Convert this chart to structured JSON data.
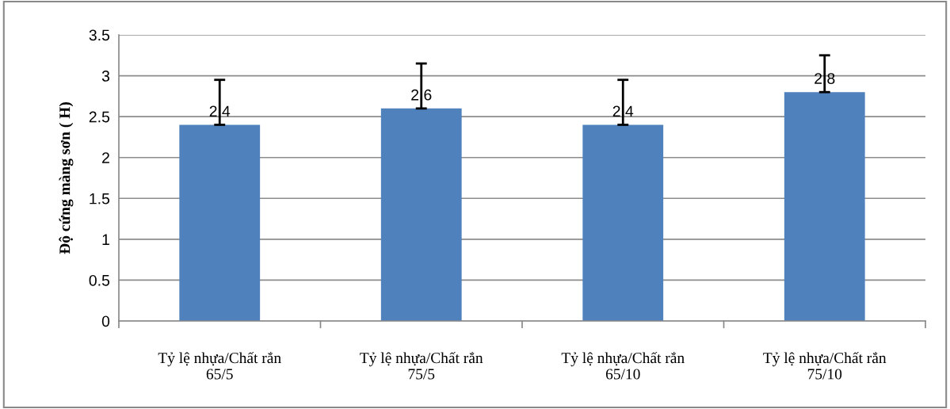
{
  "chart_data": {
    "type": "bar",
    "ylabel": "Độ cứng màng sơn ( H)",
    "categories": [
      "Tỷ lệ nhựa/Chất rắn\n65/5",
      "Tỷ lệ nhựa/Chất rắn\n75/5",
      "Tỷ lệ nhựa/Chất rắn\n65/10",
      "Tỷ lệ nhựa/Chất rắn\n75/10"
    ],
    "values": [
      2.4,
      2.6,
      2.4,
      2.8
    ],
    "color": "#4f81bd",
    "errors": [
      [
        2.4,
        2.95
      ],
      [
        2.6,
        3.15
      ],
      [
        2.4,
        2.95
      ],
      [
        2.8,
        3.25
      ]
    ],
    "data_labels": true,
    "ylim": [
      0,
      3.5
    ],
    "yticks": [
      0,
      0.5,
      1,
      1.5,
      2,
      2.5,
      3,
      3.5
    ],
    "grid": "y",
    "legend": false
  }
}
